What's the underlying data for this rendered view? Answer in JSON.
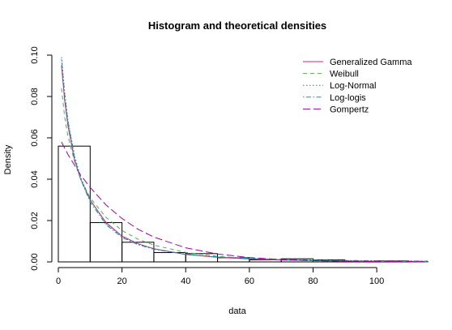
{
  "chart_data": {
    "type": "histogram",
    "title": "Histogram and theoretical densities",
    "xlabel": "data",
    "ylabel": "Density",
    "xlim": [
      0,
      116
    ],
    "ylim": [
      0,
      0.1
    ],
    "x_ticks": [
      0,
      20,
      40,
      60,
      80,
      100
    ],
    "x_tick_labels": [
      "0",
      "20",
      "40",
      "60",
      "80",
      "100"
    ],
    "y_ticks": [
      0,
      0.02,
      0.04,
      0.06,
      0.08,
      0.1
    ],
    "y_tick_labels": [
      "0.00",
      "0.02",
      "0.04",
      "0.06",
      "0.08",
      "0.10"
    ],
    "grid": false,
    "legend_position": "top-right",
    "bins": [
      {
        "x0": 0,
        "x1": 10,
        "density": 0.056
      },
      {
        "x0": 10,
        "x1": 20,
        "density": 0.019
      },
      {
        "x0": 20,
        "x1": 30,
        "density": 0.0095
      },
      {
        "x0": 30,
        "x1": 40,
        "density": 0.0045
      },
      {
        "x0": 40,
        "x1": 50,
        "density": 0.004
      },
      {
        "x0": 50,
        "x1": 60,
        "density": 0.002
      },
      {
        "x0": 60,
        "x1": 70,
        "density": 0.001
      },
      {
        "x0": 70,
        "x1": 80,
        "density": 0.0015
      },
      {
        "x0": 80,
        "x1": 90,
        "density": 0.001
      },
      {
        "x0": 90,
        "x1": 100,
        "density": 0.0003
      },
      {
        "x0": 100,
        "x1": 110,
        "density": 0.0005
      },
      {
        "x0": 110,
        "x1": 116,
        "density": 0.0002
      }
    ],
    "series": [
      {
        "name": "Generalized Gamma",
        "color": "#dd1c77",
        "dash": "solid",
        "x": [
          1,
          2,
          3,
          5,
          7,
          10,
          15,
          20,
          25,
          30,
          40,
          50,
          60,
          70,
          80,
          90,
          100,
          116
        ],
        "y": [
          0.095,
          0.078,
          0.066,
          0.05,
          0.04,
          0.03,
          0.019,
          0.0125,
          0.0088,
          0.0064,
          0.0036,
          0.0022,
          0.0014,
          0.0009,
          0.0006,
          0.0004,
          0.0003,
          0.0002
        ]
      },
      {
        "name": "Weibull",
        "color": "#4daf4a",
        "dash": "dashed",
        "x": [
          1,
          2,
          3,
          5,
          7,
          10,
          15,
          20,
          25,
          30,
          40,
          50,
          60,
          70,
          80,
          90,
          100,
          116
        ],
        "y": [
          0.084,
          0.07,
          0.061,
          0.049,
          0.04,
          0.031,
          0.0215,
          0.0152,
          0.011,
          0.0081,
          0.0046,
          0.0027,
          0.0016,
          0.001,
          0.0006,
          0.0004,
          0.0003,
          0.0001
        ]
      },
      {
        "name": "Log-Normal",
        "color": "#1f78b4",
        "dash": "dotted",
        "x": [
          1,
          2,
          3,
          5,
          7,
          10,
          15,
          20,
          25,
          30,
          40,
          50,
          60,
          70,
          80,
          90,
          100,
          116
        ],
        "y": [
          0.099,
          0.082,
          0.069,
          0.052,
          0.041,
          0.03,
          0.0185,
          0.0122,
          0.0086,
          0.0063,
          0.0037,
          0.0024,
          0.0016,
          0.0011,
          0.0008,
          0.0006,
          0.0005,
          0.0003
        ]
      },
      {
        "name": "Log-logis",
        "color": "#00a0a0",
        "dash": "dotdash",
        "x": [
          1,
          2,
          3,
          5,
          7,
          10,
          15,
          20,
          25,
          30,
          40,
          50,
          60,
          70,
          80,
          90,
          100,
          116
        ],
        "y": [
          0.098,
          0.081,
          0.068,
          0.051,
          0.04,
          0.029,
          0.018,
          0.0118,
          0.0083,
          0.0061,
          0.0036,
          0.0024,
          0.0017,
          0.0012,
          0.0009,
          0.0007,
          0.0006,
          0.0004
        ]
      },
      {
        "name": "Gompertz",
        "color": "#a0009f",
        "dash": "longdash",
        "x": [
          1,
          2,
          3,
          5,
          7,
          10,
          15,
          20,
          25,
          30,
          40,
          50,
          60,
          70,
          80,
          90,
          100,
          116
        ],
        "y": [
          0.058,
          0.055,
          0.052,
          0.047,
          0.042,
          0.036,
          0.0275,
          0.021,
          0.0158,
          0.012,
          0.0068,
          0.0038,
          0.0021,
          0.0011,
          0.0006,
          0.0003,
          0.0002,
          0.0001
        ]
      }
    ]
  }
}
